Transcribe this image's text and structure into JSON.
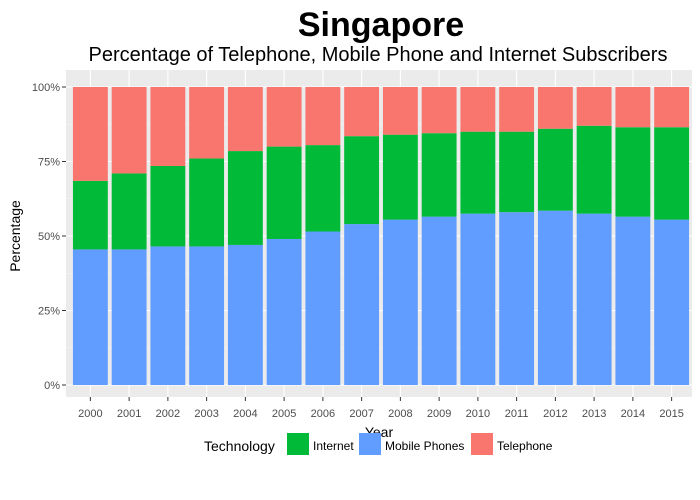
{
  "chart_data": {
    "type": "bar",
    "stacked": "percent",
    "title": "Singapore",
    "subtitle": "Percentage of Telephone, Mobile Phone and Internet Subscribers",
    "xlabel": "Year",
    "ylabel": "Percentage",
    "ylim": [
      0,
      100
    ],
    "yticks": [
      "0%",
      "25%",
      "50%",
      "75%",
      "100%"
    ],
    "grid": true,
    "legend_position": "bottom",
    "legend_title": "Technology",
    "categories": [
      "2000",
      "2001",
      "2002",
      "2003",
      "2004",
      "2005",
      "2006",
      "2007",
      "2008",
      "2009",
      "2010",
      "2011",
      "2012",
      "2013",
      "2014",
      "2015"
    ],
    "series": [
      {
        "name": "Mobile Phones",
        "color": "#619CFF",
        "values": [
          45.5,
          45.5,
          46.5,
          46.5,
          47,
          49,
          51.5,
          54,
          55.5,
          56.5,
          57.5,
          58,
          58.5,
          57.5,
          56.5,
          55.5
        ]
      },
      {
        "name": "Internet",
        "color": "#00BA38",
        "values": [
          23,
          25.5,
          27,
          29.5,
          31.5,
          31,
          29,
          29.5,
          28.5,
          28,
          27.5,
          27,
          27.5,
          29.5,
          30,
          31
        ]
      },
      {
        "name": "Telephone",
        "color": "#F8766D",
        "values": [
          31.5,
          29,
          26.5,
          24,
          21.5,
          20,
          19.5,
          16.5,
          16,
          15.5,
          15,
          15,
          14,
          13,
          13.5,
          13.5
        ]
      }
    ],
    "legend_order": [
      "Internet",
      "Mobile Phones",
      "Telephone"
    ]
  }
}
